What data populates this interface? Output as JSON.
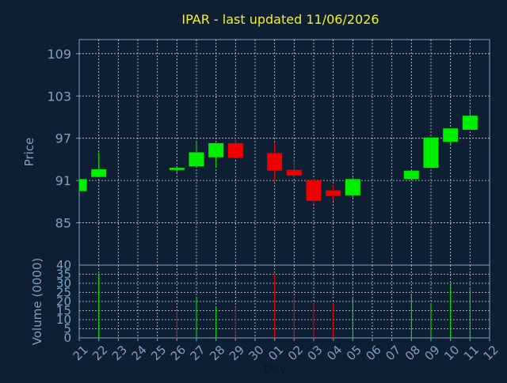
{
  "title": "IPAR - last updated 11/06/2026",
  "colors": {
    "background": "#0f1f33",
    "title": "#f2f21a",
    "axis_text": "#7f9fc0",
    "axis_line": "#7f9fc0",
    "grid": "#c8d2dc",
    "up": "#00ee00",
    "down": "#ee0000"
  },
  "chart_data": [
    {
      "type": "candlestick",
      "ylabel": "Price",
      "xlabel": "",
      "ylim": [
        79,
        111
      ],
      "yticks": [
        85,
        91,
        97,
        103,
        109
      ],
      "grid": true,
      "x_dates": [
        "21",
        "22",
        "23",
        "24",
        "25",
        "26",
        "27",
        "28",
        "29",
        "30",
        "01",
        "02",
        "03",
        "04",
        "05",
        "06",
        "07",
        "08",
        "09",
        "10",
        "11",
        "12"
      ],
      "series": [
        {
          "date": "21",
          "open": 89.5,
          "high": 91.2,
          "low": 89.5,
          "close": 91.2
        },
        {
          "date": "22",
          "open": 91.5,
          "high": 95.0,
          "low": 91.5,
          "close": 92.6
        },
        {
          "date": "26",
          "open": 92.5,
          "high": 92.8,
          "low": 91.9,
          "close": 92.8
        },
        {
          "date": "27",
          "open": 93.0,
          "high": 96.5,
          "low": 93.0,
          "close": 95.0
        },
        {
          "date": "28",
          "open": 94.3,
          "high": 96.3,
          "low": 92.8,
          "close": 96.3
        },
        {
          "date": "29",
          "open": 96.3,
          "high": 97.0,
          "low": 94.2,
          "close": 94.2
        },
        {
          "date": "01",
          "open": 94.9,
          "high": 96.4,
          "low": 90.9,
          "close": 92.4
        },
        {
          "date": "02",
          "open": 92.5,
          "high": 93.8,
          "low": 91.4,
          "close": 91.7
        },
        {
          "date": "03",
          "open": 91.0,
          "high": 91.2,
          "low": 87.6,
          "close": 88.1
        },
        {
          "date": "04",
          "open": 89.6,
          "high": 90.4,
          "low": 88.1,
          "close": 88.8
        },
        {
          "date": "05",
          "open": 88.9,
          "high": 91.4,
          "low": 88.6,
          "close": 91.2
        },
        {
          "date": "08",
          "open": 91.2,
          "high": 92.4,
          "low": 91.1,
          "close": 92.4
        },
        {
          "date": "09",
          "open": 92.8,
          "high": 97.1,
          "low": 92.8,
          "close": 97.1
        },
        {
          "date": "10",
          "open": 96.5,
          "high": 98.4,
          "low": 96.0,
          "close": 98.4
        },
        {
          "date": "11",
          "open": 98.2,
          "high": 100.9,
          "low": 98.2,
          "close": 100.2
        }
      ]
    },
    {
      "type": "bar",
      "ylabel": "Volume (0000)",
      "xlabel": "Day",
      "ylim": [
        0,
        40
      ],
      "yticks": [
        0,
        5,
        10,
        15,
        20,
        25,
        30,
        35,
        40
      ],
      "grid": true,
      "x_dates": [
        "21",
        "22",
        "23",
        "24",
        "25",
        "26",
        "27",
        "28",
        "29",
        "30",
        "01",
        "02",
        "03",
        "04",
        "05",
        "06",
        "07",
        "08",
        "09",
        "10",
        "11",
        "12"
      ],
      "series": [
        {
          "date": "22",
          "value": 35,
          "direction": "up"
        },
        {
          "date": "26",
          "value": 15,
          "direction": "down"
        },
        {
          "date": "27",
          "value": 22,
          "direction": "up"
        },
        {
          "date": "28",
          "value": 17,
          "direction": "up"
        },
        {
          "date": "29",
          "value": 17,
          "direction": "down"
        },
        {
          "date": "01",
          "value": 35,
          "direction": "down"
        },
        {
          "date": "02",
          "value": 23,
          "direction": "down"
        },
        {
          "date": "03",
          "value": 19,
          "direction": "down"
        },
        {
          "date": "04",
          "value": 19,
          "direction": "down"
        },
        {
          "date": "05",
          "value": 22,
          "direction": "up"
        },
        {
          "date": "08",
          "value": 24,
          "direction": "up"
        },
        {
          "date": "09",
          "value": 19,
          "direction": "up"
        },
        {
          "date": "10",
          "value": 29,
          "direction": "up"
        },
        {
          "date": "11",
          "value": 27,
          "direction": "up"
        }
      ]
    }
  ]
}
